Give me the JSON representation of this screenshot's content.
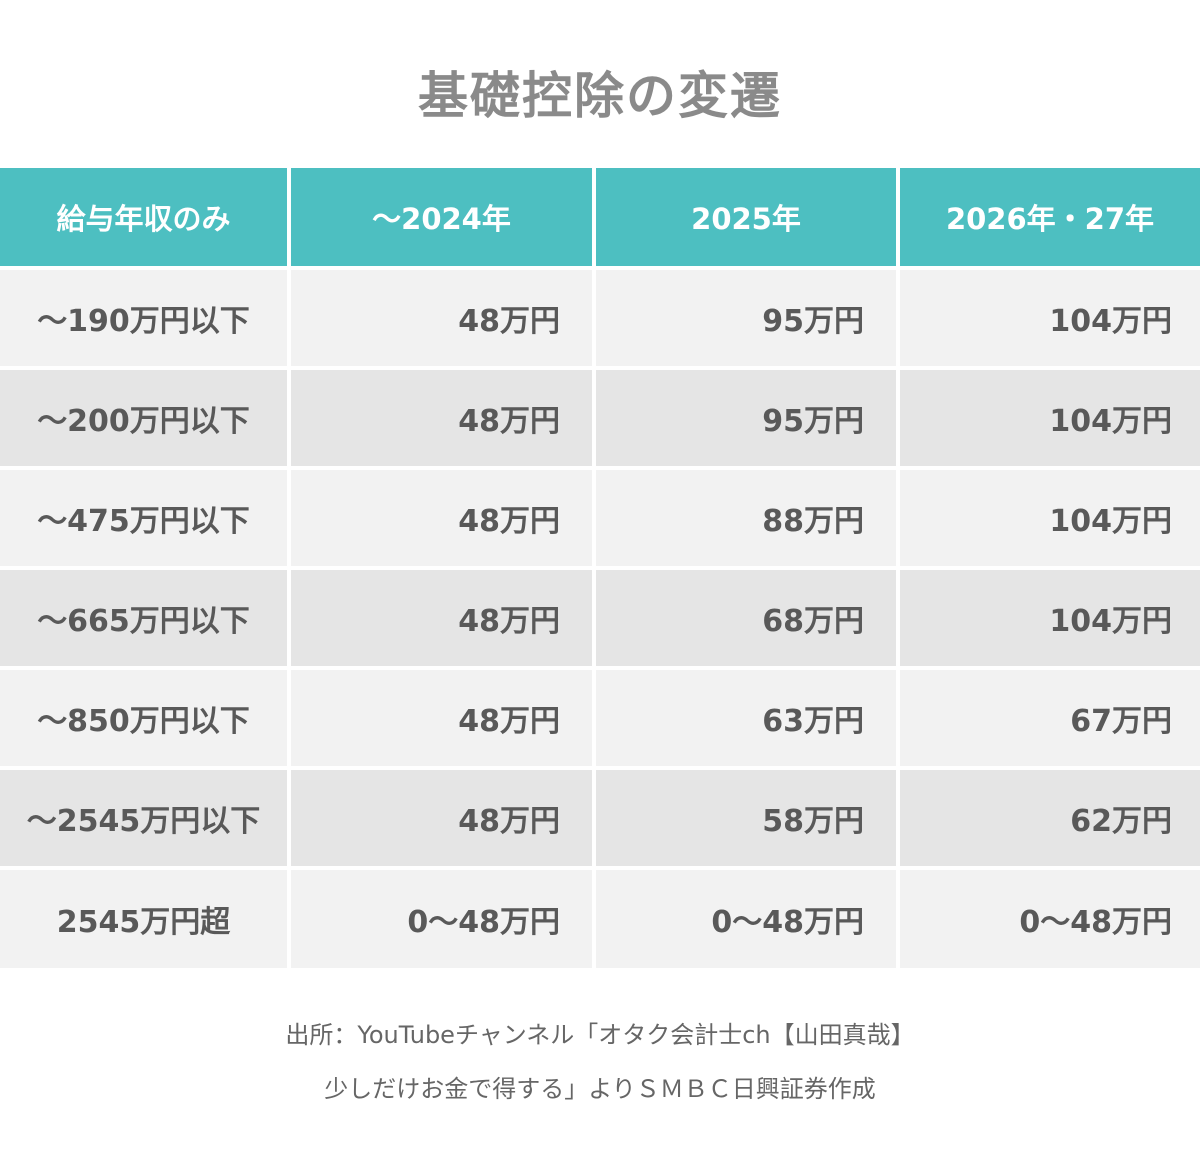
{
  "title": "基礎控除の変遷",
  "table": {
    "headers": [
      "給与年収のみ",
      "～2024年",
      "2025年",
      "2026年・27年"
    ],
    "rows": [
      [
        "～190万円以下",
        "48万円",
        "95万円",
        "104万円"
      ],
      [
        "～200万円以下",
        "48万円",
        "95万円",
        "104万円"
      ],
      [
        "～475万円以下",
        "48万円",
        "88万円",
        "104万円"
      ],
      [
        "～665万円以下",
        "48万円",
        "68万円",
        "104万円"
      ],
      [
        "～850万円以下",
        "48万円",
        "63万円",
        "67万円"
      ],
      [
        "～2545万円以下",
        "48万円",
        "58万円",
        "62万円"
      ],
      [
        "2545万円超",
        "0～48万円",
        "0～48万円",
        "0～48万円"
      ]
    ]
  },
  "source": {
    "line1": "出所：YouTubeチャンネル「オタク会計士ch【山田真哉】",
    "line2": "少しだけお金で得する」よりＳＭＢＣ日興証券作成"
  },
  "colors": {
    "header_bg": "#4dbfc1",
    "row_light": "#f2f2f2",
    "row_dark": "#e5e5e5",
    "title_text": "#8a8a8a",
    "body_text": "#595959"
  }
}
